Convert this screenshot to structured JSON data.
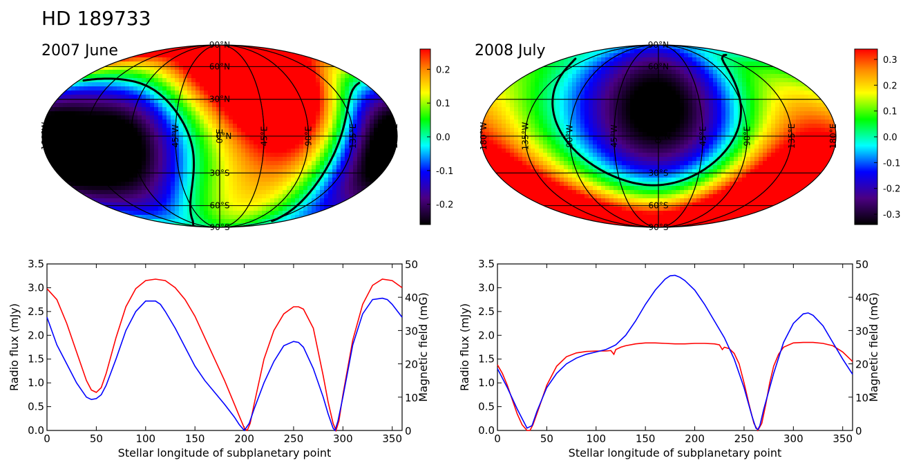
{
  "figure_title": "HD 189733",
  "chart_data": [
    {
      "type": "heatmap",
      "projection": "mollweide",
      "title": "2007 June",
      "colorbar": {
        "ticks": [
          0.2,
          0.1,
          0.0,
          -0.1,
          -0.2
        ],
        "tick_labels": [
          "0.2",
          "0.1",
          "0.0",
          "-0.1",
          "-0.2"
        ],
        "range": [
          -0.26,
          0.26
        ]
      },
      "lon_labels": [
        "180°W",
        "135°W",
        "90°W",
        "45°W",
        "0°E",
        "45°E",
        "90°E",
        "135°E",
        "180°E"
      ],
      "lat_labels": [
        "90°N",
        "60°N",
        "30°N",
        "0°N",
        "30°S",
        "60°S",
        "90°S"
      ],
      "field_sources": [
        {
          "lon": -100,
          "lat": -5,
          "amp": -0.34,
          "sigma": 48
        },
        {
          "lon": 165,
          "lat": -3,
          "amp": -0.32,
          "sigma": 40
        },
        {
          "lon": 55,
          "lat": 55,
          "amp": 0.3,
          "sigma": 45
        },
        {
          "lon": 80,
          "lat": 15,
          "amp": 0.18,
          "sigma": 45
        },
        {
          "lon": -60,
          "lat": 75,
          "amp": 0.22,
          "sigma": 40
        },
        {
          "lon": 0,
          "lat": -65,
          "amp": 0.14,
          "sigma": 40
        }
      ]
    },
    {
      "type": "heatmap",
      "projection": "mollweide",
      "title": "2008 July",
      "colorbar": {
        "ticks": [
          0.3,
          0.2,
          0.1,
          0.0,
          -0.1,
          -0.2,
          -0.3
        ],
        "tick_labels": [
          "0.3",
          "0.2",
          "0.1",
          "0.0",
          "-0.1",
          "-0.2",
          "-0.3"
        ],
        "range": [
          -0.34,
          0.34
        ]
      },
      "lon_labels": [
        "180°W",
        "135°W",
        "90°W",
        "45°W",
        "0°E",
        "45°E",
        "90°E",
        "135°E",
        "180°E"
      ],
      "lat_labels": [
        "90°N",
        "60°N",
        "30°N",
        "0°N",
        "30°S",
        "60°S",
        "90°S"
      ],
      "field_sources": [
        {
          "lon": 0,
          "lat": 20,
          "amp": -0.4,
          "sigma": 55
        },
        {
          "lon": 150,
          "lat": -40,
          "amp": 0.35,
          "sigma": 45
        },
        {
          "lon": 0,
          "lat": -90,
          "amp": 0.38,
          "sigma": 40
        },
        {
          "lon": 130,
          "lat": 50,
          "amp": 0.12,
          "sigma": 40
        },
        {
          "lon": -160,
          "lat": -20,
          "amp": 0.1,
          "sigma": 45
        }
      ]
    },
    {
      "type": "line",
      "xlabel": "Stellar longitude of subplanetary point",
      "ylabel": "Radio flux (mJy)",
      "ylabel_right": "Magnetic field (mG)",
      "xlim": [
        0,
        360
      ],
      "ylim": [
        0,
        3.5
      ],
      "ylim_right": [
        0,
        50
      ],
      "xticks": [
        0,
        50,
        100,
        150,
        200,
        250,
        300,
        350
      ],
      "yticks": [
        0.0,
        0.5,
        1.0,
        1.5,
        2.0,
        2.5,
        3.0,
        3.5
      ],
      "yticks_right": [
        0,
        10,
        20,
        30,
        40,
        50
      ],
      "series": [
        {
          "color": "#ff0000",
          "axis": "left",
          "x": [
            0,
            10,
            20,
            30,
            40,
            45,
            50,
            55,
            60,
            70,
            80,
            90,
            100,
            110,
            120,
            130,
            140,
            150,
            160,
            170,
            180,
            190,
            195,
            200,
            203,
            206,
            210,
            220,
            230,
            240,
            250,
            255,
            260,
            270,
            280,
            285,
            290,
            293,
            296,
            300,
            310,
            320,
            330,
            340,
            350,
            360
          ],
          "y": [
            2.98,
            2.75,
            2.25,
            1.65,
            1.05,
            0.85,
            0.8,
            0.9,
            1.2,
            1.95,
            2.6,
            2.98,
            3.15,
            3.18,
            3.15,
            3.0,
            2.75,
            2.4,
            1.95,
            1.5,
            1.05,
            0.55,
            0.3,
            0.05,
            0.0,
            0.15,
            0.55,
            1.5,
            2.1,
            2.45,
            2.6,
            2.6,
            2.55,
            2.15,
            1.15,
            0.6,
            0.15,
            0.0,
            0.2,
            0.75,
            1.9,
            2.65,
            3.05,
            3.18,
            3.15,
            3.0
          ]
        },
        {
          "color": "#0000ff",
          "axis": "left",
          "x": [
            0,
            10,
            20,
            30,
            40,
            45,
            50,
            55,
            60,
            70,
            80,
            90,
            100,
            110,
            115,
            120,
            130,
            140,
            150,
            160,
            170,
            180,
            190,
            195,
            200,
            205,
            210,
            220,
            230,
            240,
            250,
            255,
            260,
            270,
            280,
            285,
            290,
            292,
            295,
            300,
            310,
            320,
            330,
            340,
            345,
            350,
            360
          ],
          "y": [
            2.38,
            1.8,
            1.4,
            1.0,
            0.7,
            0.65,
            0.67,
            0.75,
            0.95,
            1.5,
            2.1,
            2.5,
            2.72,
            2.72,
            2.65,
            2.5,
            2.15,
            1.75,
            1.35,
            1.05,
            0.8,
            0.55,
            0.28,
            0.12,
            0.0,
            0.15,
            0.45,
            1.0,
            1.45,
            1.78,
            1.87,
            1.85,
            1.75,
            1.3,
            0.7,
            0.35,
            0.05,
            0.0,
            0.2,
            0.7,
            1.8,
            2.45,
            2.75,
            2.78,
            2.75,
            2.65,
            2.38
          ]
        }
      ]
    },
    {
      "type": "line",
      "xlabel": "Stellar longitude of subplanetary point",
      "ylabel": "Radio flux (mJy)",
      "ylabel_right": "Magnetic field (mG)",
      "xlim": [
        0,
        360
      ],
      "ylim": [
        0,
        3.5
      ],
      "ylim_right": [
        0,
        50
      ],
      "xticks": [
        0,
        50,
        100,
        150,
        200,
        250,
        300,
        350
      ],
      "yticks": [
        0.0,
        0.5,
        1.0,
        1.5,
        2.0,
        2.5,
        3.0,
        3.5
      ],
      "yticks_right": [
        0,
        10,
        20,
        30,
        40,
        50
      ],
      "series": [
        {
          "color": "#ff0000",
          "axis": "left",
          "x": [
            0,
            5,
            10,
            15,
            20,
            25,
            30,
            33,
            36,
            40,
            45,
            50,
            60,
            70,
            80,
            90,
            100,
            110,
            115,
            118,
            120,
            125,
            130,
            140,
            150,
            160,
            170,
            180,
            190,
            200,
            210,
            220,
            225,
            228,
            230,
            235,
            240,
            245,
            250,
            255,
            260,
            264,
            268,
            272,
            276,
            280,
            285,
            290,
            300,
            310,
            320,
            330,
            340,
            350,
            360
          ],
          "y": [
            1.38,
            1.2,
            0.95,
            0.65,
            0.35,
            0.12,
            0.0,
            0.0,
            0.12,
            0.35,
            0.65,
            0.95,
            1.35,
            1.55,
            1.63,
            1.66,
            1.67,
            1.67,
            1.68,
            1.6,
            1.7,
            1.75,
            1.78,
            1.82,
            1.84,
            1.84,
            1.83,
            1.82,
            1.82,
            1.83,
            1.83,
            1.82,
            1.8,
            1.7,
            1.75,
            1.72,
            1.62,
            1.4,
            1.0,
            0.55,
            0.15,
            0.0,
            0.15,
            0.55,
            1.0,
            1.35,
            1.6,
            1.75,
            1.84,
            1.85,
            1.85,
            1.83,
            1.78,
            1.65,
            1.45
          ]
        },
        {
          "color": "#0000ff",
          "axis": "left",
          "x": [
            0,
            10,
            20,
            30,
            35,
            40,
            50,
            60,
            70,
            80,
            90,
            100,
            110,
            120,
            130,
            140,
            150,
            160,
            170,
            175,
            180,
            185,
            190,
            200,
            210,
            220,
            230,
            240,
            250,
            258,
            262,
            264,
            266,
            270,
            280,
            290,
            300,
            310,
            315,
            320,
            330,
            340,
            350,
            360
          ],
          "y": [
            1.3,
            0.9,
            0.45,
            0.05,
            0.1,
            0.4,
            0.9,
            1.2,
            1.4,
            1.52,
            1.6,
            1.65,
            1.7,
            1.8,
            2.0,
            2.3,
            2.65,
            2.95,
            3.18,
            3.25,
            3.26,
            3.22,
            3.15,
            2.95,
            2.65,
            2.3,
            1.95,
            1.5,
            0.9,
            0.3,
            0.05,
            0.02,
            0.1,
            0.45,
            1.2,
            1.85,
            2.25,
            2.45,
            2.47,
            2.42,
            2.2,
            1.85,
            1.5,
            1.18
          ]
        }
      ]
    }
  ]
}
